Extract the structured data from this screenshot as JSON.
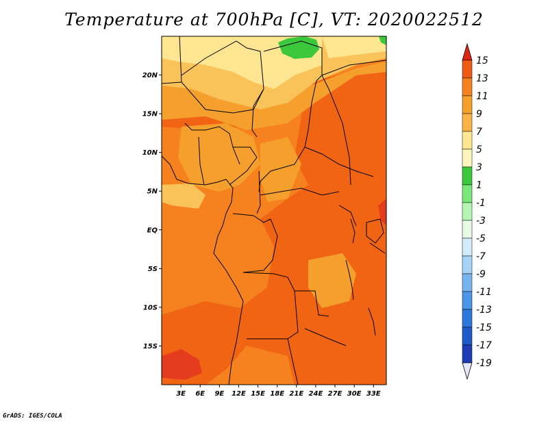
{
  "title": "Temperature at 700hPa [C], VT: 2020022512",
  "credit": "GrADS: IGES/COLA",
  "map": {
    "lon_range": [
      0,
      35
    ],
    "lat_range": [
      -20,
      25
    ],
    "lat_ticks": [
      {
        "value": 20,
        "label": "20N"
      },
      {
        "value": 15,
        "label": "15N"
      },
      {
        "value": 10,
        "label": "10N"
      },
      {
        "value": 5,
        "label": "5N"
      },
      {
        "value": 0,
        "label": "EQ"
      },
      {
        "value": -5,
        "label": "5S"
      },
      {
        "value": -10,
        "label": "10S"
      },
      {
        "value": -15,
        "label": "15S"
      }
    ],
    "lon_ticks": [
      {
        "value": 3,
        "label": "3E"
      },
      {
        "value": 6,
        "label": "6E"
      },
      {
        "value": 9,
        "label": "9E"
      },
      {
        "value": 12,
        "label": "12E"
      },
      {
        "value": 15,
        "label": "15E"
      },
      {
        "value": 18,
        "label": "18E"
      },
      {
        "value": 21,
        "label": "21E"
      },
      {
        "value": 24,
        "label": "24E"
      },
      {
        "value": 27,
        "label": "27E"
      },
      {
        "value": 30,
        "label": "30E"
      },
      {
        "value": 33,
        "label": "33E"
      }
    ],
    "colors": {
      "hot_red": "#e63c1e",
      "dark_orange": "#f06414",
      "orange": "#f5821e",
      "light_orange": "#f5a02d",
      "pale_orange": "#fac35a",
      "pale_yellow": "#fde591",
      "green": "#3cc83c",
      "border": "#000000"
    }
  },
  "colorbar": {
    "labels": [
      "15",
      "13",
      "11",
      "9",
      "7",
      "5",
      "3",
      "1",
      "-1",
      "-3",
      "-5",
      "-7",
      "-9",
      "-11",
      "-13",
      "-15",
      "-17",
      "-19"
    ],
    "colors": [
      "#dc2814",
      "#f05a14",
      "#f5821e",
      "#f5a02d",
      "#fab446",
      "#fde591",
      "#fdf5b9",
      "#3cc83c",
      "#78e678",
      "#b4f5b4",
      "#e6fae6",
      "#d2ebfa",
      "#a5d2f5",
      "#78b4f0",
      "#4b96e6",
      "#2d78dc",
      "#1e5ac8",
      "#1e3cb4",
      "#0a1464"
    ],
    "top_arrow_color": "#dc2814",
    "bottom_arrow_color": "#e6e6fa"
  }
}
